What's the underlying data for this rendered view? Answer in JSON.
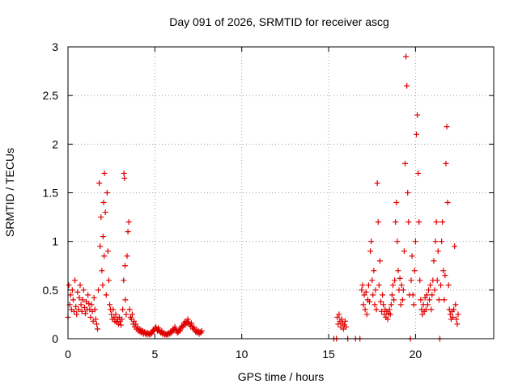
{
  "chart_data": {
    "type": "scatter",
    "title": "Day 091 of 2026, SRMTID for receiver ascg",
    "xlabel": "GPS time / hours",
    "ylabel": "SRMTID / TECUs",
    "xlim": [
      0,
      24.5
    ],
    "ylim": [
      0,
      3
    ],
    "xticks": [
      0,
      5,
      10,
      15,
      20
    ],
    "xtick_labels": [
      "0",
      "5",
      "10",
      "15",
      "20"
    ],
    "yticks": [
      0,
      0.5,
      1,
      1.5,
      2,
      2.5,
      3
    ],
    "ytick_labels": [
      "0",
      "0.5",
      "1",
      "1.5",
      "2",
      "2.5",
      "3"
    ],
    "grid": true,
    "marker": "+",
    "color": "#e00000",
    "series": [
      {
        "name": "SRMTID",
        "points": [
          [
            0.0,
            0.22
          ],
          [
            0.05,
            0.55
          ],
          [
            0.1,
            0.35
          ],
          [
            0.15,
            0.45
          ],
          [
            0.2,
            0.3
          ],
          [
            0.25,
            0.5
          ],
          [
            0.3,
            0.4
          ],
          [
            0.35,
            0.28
          ],
          [
            0.4,
            0.6
          ],
          [
            0.45,
            0.33
          ],
          [
            0.5,
            0.25
          ],
          [
            0.55,
            0.48
          ],
          [
            0.6,
            0.3
          ],
          [
            0.65,
            0.42
          ],
          [
            0.7,
            0.55
          ],
          [
            0.75,
            0.35
          ],
          [
            0.8,
            0.28
          ],
          [
            0.85,
            0.4
          ],
          [
            0.9,
            0.5
          ],
          [
            0.95,
            0.32
          ],
          [
            1.0,
            0.26
          ],
          [
            1.05,
            0.38
          ],
          [
            1.1,
            0.3
          ],
          [
            1.15,
            0.45
          ],
          [
            1.2,
            0.36
          ],
          [
            1.25,
            0.3
          ],
          [
            1.3,
            0.22
          ],
          [
            1.35,
            0.35
          ],
          [
            1.4,
            0.28
          ],
          [
            1.45,
            0.18
          ],
          [
            1.5,
            0.42
          ],
          [
            1.55,
            0.3
          ],
          [
            1.6,
            0.2
          ],
          [
            1.65,
            0.15
          ],
          [
            1.7,
            0.1
          ],
          [
            1.75,
            0.5
          ],
          [
            1.8,
            1.6
          ],
          [
            1.85,
            0.95
          ],
          [
            1.9,
            1.25
          ],
          [
            1.95,
            0.7
          ],
          [
            2.0,
            0.55
          ],
          [
            2.02,
            1.05
          ],
          [
            2.05,
            1.4
          ],
          [
            2.08,
            0.85
          ],
          [
            2.1,
            1.7
          ],
          [
            2.15,
            1.3
          ],
          [
            2.2,
            0.45
          ],
          [
            2.25,
            1.5
          ],
          [
            2.3,
            0.9
          ],
          [
            2.35,
            0.6
          ],
          [
            2.4,
            0.35
          ],
          [
            2.45,
            0.3
          ],
          [
            2.5,
            0.25
          ],
          [
            2.55,
            0.2
          ],
          [
            2.6,
            0.3
          ],
          [
            2.65,
            0.22
          ],
          [
            2.7,
            0.18
          ],
          [
            2.75,
            0.25
          ],
          [
            2.8,
            0.17
          ],
          [
            2.85,
            0.2
          ],
          [
            2.9,
            0.15
          ],
          [
            2.95,
            0.22
          ],
          [
            3.0,
            0.18
          ],
          [
            3.05,
            0.14
          ],
          [
            3.1,
            0.2
          ],
          [
            3.15,
            0.3
          ],
          [
            3.2,
            0.6
          ],
          [
            3.22,
            1.7
          ],
          [
            3.25,
            1.65
          ],
          [
            3.28,
            0.75
          ],
          [
            3.3,
            0.4
          ],
          [
            3.35,
            0.25
          ],
          [
            3.4,
            0.85
          ],
          [
            3.45,
            1.1
          ],
          [
            3.5,
            1.2
          ],
          [
            3.55,
            0.3
          ],
          [
            3.6,
            0.22
          ],
          [
            3.65,
            0.2
          ],
          [
            3.7,
            0.25
          ],
          [
            3.75,
            0.15
          ],
          [
            3.8,
            0.18
          ],
          [
            3.85,
            0.12
          ],
          [
            3.9,
            0.15
          ],
          [
            3.95,
            0.1
          ],
          [
            4.0,
            0.12
          ],
          [
            4.05,
            0.08
          ],
          [
            4.1,
            0.1
          ],
          [
            4.15,
            0.07
          ],
          [
            4.2,
            0.09
          ],
          [
            4.25,
            0.06
          ],
          [
            4.3,
            0.08
          ],
          [
            4.35,
            0.05
          ],
          [
            4.4,
            0.07
          ],
          [
            4.45,
            0.05
          ],
          [
            4.5,
            0.06
          ],
          [
            4.55,
            0.04
          ],
          [
            4.6,
            0.06
          ],
          [
            4.65,
            0.05
          ],
          [
            4.7,
            0.04
          ],
          [
            4.75,
            0.06
          ],
          [
            4.8,
            0.05
          ],
          [
            4.85,
            0.07
          ],
          [
            4.9,
            0.09
          ],
          [
            4.95,
            0.08
          ],
          [
            5.0,
            0.1
          ],
          [
            5.05,
            0.12
          ],
          [
            5.1,
            0.1
          ],
          [
            5.15,
            0.08
          ],
          [
            5.2,
            0.11
          ],
          [
            5.25,
            0.09
          ],
          [
            5.3,
            0.07
          ],
          [
            5.35,
            0.06
          ],
          [
            5.4,
            0.08
          ],
          [
            5.45,
            0.05
          ],
          [
            5.5,
            0.06
          ],
          [
            5.55,
            0.04
          ],
          [
            5.6,
            0.05
          ],
          [
            5.65,
            0.04
          ],
          [
            5.7,
            0.05
          ],
          [
            5.75,
            0.04
          ],
          [
            5.8,
            0.06
          ],
          [
            5.85,
            0.05
          ],
          [
            5.9,
            0.07
          ],
          [
            5.95,
            0.06
          ],
          [
            6.0,
            0.08
          ],
          [
            6.05,
            0.1
          ],
          [
            6.1,
            0.09
          ],
          [
            6.15,
            0.12
          ],
          [
            6.2,
            0.1
          ],
          [
            6.25,
            0.08
          ],
          [
            6.3,
            0.06
          ],
          [
            6.35,
            0.07
          ],
          [
            6.4,
            0.09
          ],
          [
            6.45,
            0.08
          ],
          [
            6.5,
            0.11
          ],
          [
            6.55,
            0.13
          ],
          [
            6.6,
            0.12
          ],
          [
            6.65,
            0.15
          ],
          [
            6.7,
            0.17
          ],
          [
            6.75,
            0.14
          ],
          [
            6.8,
            0.18
          ],
          [
            6.85,
            0.16
          ],
          [
            6.9,
            0.2
          ],
          [
            6.95,
            0.17
          ],
          [
            7.0,
            0.15
          ],
          [
            7.05,
            0.13
          ],
          [
            7.1,
            0.16
          ],
          [
            7.15,
            0.12
          ],
          [
            7.2,
            0.1
          ],
          [
            7.25,
            0.12
          ],
          [
            7.3,
            0.09
          ],
          [
            7.35,
            0.07
          ],
          [
            7.4,
            0.09
          ],
          [
            7.45,
            0.06
          ],
          [
            7.5,
            0.08
          ],
          [
            7.55,
            0.05
          ],
          [
            7.6,
            0.07
          ],
          [
            7.65,
            0.06
          ],
          [
            7.7,
            0.08
          ],
          [
            15.3,
            0.0
          ],
          [
            15.45,
            0.0
          ],
          [
            15.5,
            0.22
          ],
          [
            15.55,
            0.15
          ],
          [
            15.6,
            0.25
          ],
          [
            15.65,
            0.18
          ],
          [
            15.7,
            0.12
          ],
          [
            15.75,
            0.2
          ],
          [
            15.8,
            0.16
          ],
          [
            15.85,
            0.1
          ],
          [
            15.9,
            0.14
          ],
          [
            15.95,
            0.18
          ],
          [
            16.0,
            0.12
          ],
          [
            16.1,
            0.0
          ],
          [
            16.55,
            0.0
          ],
          [
            16.8,
            0.0
          ],
          [
            16.9,
            0.5
          ],
          [
            16.95,
            0.55
          ],
          [
            17.0,
            0.35
          ],
          [
            17.05,
            0.45
          ],
          [
            17.1,
            0.3
          ],
          [
            17.15,
            0.48
          ],
          [
            17.2,
            0.25
          ],
          [
            17.25,
            0.4
          ],
          [
            17.3,
            0.55
          ],
          [
            17.35,
            0.38
          ],
          [
            17.4,
            0.9
          ],
          [
            17.45,
            1.0
          ],
          [
            17.5,
            0.6
          ],
          [
            17.55,
            0.45
          ],
          [
            17.6,
            0.7
          ],
          [
            17.65,
            0.35
          ],
          [
            17.7,
            0.5
          ],
          [
            17.75,
            0.3
          ],
          [
            17.8,
            1.6
          ],
          [
            17.85,
            1.2
          ],
          [
            17.9,
            0.55
          ],
          [
            17.95,
            0.8
          ],
          [
            18.0,
            0.38
          ],
          [
            18.05,
            0.28
          ],
          [
            18.1,
            0.45
          ],
          [
            18.15,
            0.35
          ],
          [
            18.2,
            0.25
          ],
          [
            18.25,
            0.3
          ],
          [
            18.3,
            0.22
          ],
          [
            18.35,
            0.28
          ],
          [
            18.4,
            0.2
          ],
          [
            18.45,
            0.26
          ],
          [
            18.5,
            0.3
          ],
          [
            18.55,
            0.25
          ],
          [
            18.6,
            0.35
          ],
          [
            18.65,
            0.45
          ],
          [
            18.7,
            0.55
          ],
          [
            18.75,
            0.4
          ],
          [
            18.8,
            0.6
          ],
          [
            18.85,
            1.2
          ],
          [
            18.9,
            1.4
          ],
          [
            18.95,
            1.0
          ],
          [
            19.0,
            0.7
          ],
          [
            19.05,
            0.5
          ],
          [
            19.1,
            0.62
          ],
          [
            19.15,
            0.35
          ],
          [
            19.2,
            0.55
          ],
          [
            19.25,
            0.4
          ],
          [
            19.3,
            0.5
          ],
          [
            19.35,
            0.9
          ],
          [
            19.4,
            1.8
          ],
          [
            19.45,
            2.9
          ],
          [
            19.5,
            2.6
          ],
          [
            19.55,
            1.5
          ],
          [
            19.6,
            1.2
          ],
          [
            19.65,
            0.45
          ],
          [
            19.7,
            0.0
          ],
          [
            19.75,
            0.6
          ],
          [
            19.8,
            0.85
          ],
          [
            19.85,
            0.45
          ],
          [
            19.9,
            0.35
          ],
          [
            19.95,
            0.7
          ],
          [
            20.0,
            1.0
          ],
          [
            20.05,
            2.1
          ],
          [
            20.1,
            2.3
          ],
          [
            20.15,
            1.7
          ],
          [
            20.2,
            1.2
          ],
          [
            20.25,
            0.6
          ],
          [
            20.3,
            0.4
          ],
          [
            20.35,
            0.3
          ],
          [
            20.4,
            0.25
          ],
          [
            20.45,
            0.35
          ],
          [
            20.5,
            0.28
          ],
          [
            20.55,
            0.42
          ],
          [
            20.6,
            0.3
          ],
          [
            20.65,
            0.45
          ],
          [
            20.7,
            0.35
          ],
          [
            20.75,
            0.5
          ],
          [
            20.8,
            0.4
          ],
          [
            20.85,
            0.55
          ],
          [
            20.9,
            0.3
          ],
          [
            20.95,
            0.45
          ],
          [
            21.0,
            0.6
          ],
          [
            21.05,
            0.8
          ],
          [
            21.1,
            0.5
          ],
          [
            21.15,
            1.0
          ],
          [
            21.2,
            1.2
          ],
          [
            21.25,
            0.6
          ],
          [
            21.3,
            0.9
          ],
          [
            21.35,
            0.4
          ],
          [
            21.4,
            0.0
          ],
          [
            21.45,
            0.55
          ],
          [
            21.5,
            1.0
          ],
          [
            21.55,
            1.2
          ],
          [
            21.6,
            0.7
          ],
          [
            21.65,
            0.4
          ],
          [
            21.7,
            0.65
          ],
          [
            21.75,
            1.8
          ],
          [
            21.8,
            2.18
          ],
          [
            21.85,
            1.4
          ],
          [
            21.9,
            0.55
          ],
          [
            21.95,
            0.3
          ],
          [
            22.0,
            0.25
          ],
          [
            22.05,
            0.2
          ],
          [
            22.1,
            0.28
          ],
          [
            22.15,
            0.22
          ],
          [
            22.2,
            0.3
          ],
          [
            22.25,
            0.95
          ],
          [
            22.3,
            0.35
          ],
          [
            22.35,
            0.2
          ],
          [
            22.4,
            0.15
          ],
          [
            22.45,
            0.25
          ]
        ]
      }
    ]
  }
}
